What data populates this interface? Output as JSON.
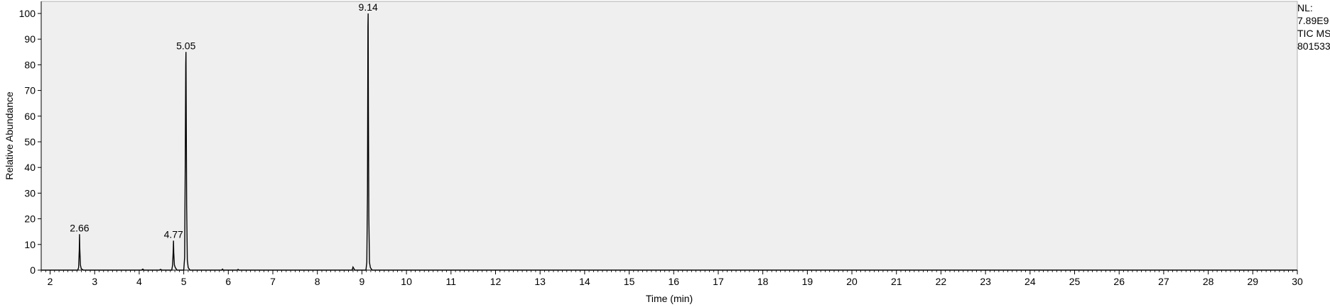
{
  "chart_data": {
    "type": "line",
    "title": "",
    "xlabel": "Time (min)",
    "ylabel": "Relative Abundance",
    "xlim": [
      1.8,
      30
    ],
    "ylim": [
      0,
      100
    ],
    "x_ticks": [
      2,
      3,
      4,
      5,
      6,
      7,
      8,
      9,
      10,
      11,
      12,
      13,
      14,
      15,
      16,
      17,
      18,
      19,
      20,
      21,
      22,
      23,
      24,
      25,
      26,
      27,
      28,
      29,
      30
    ],
    "y_ticks": [
      0,
      10,
      20,
      30,
      40,
      50,
      60,
      70,
      80,
      90,
      100
    ],
    "grid": false,
    "series": [
      {
        "x": [
          1.8,
          2.62,
          2.64,
          2.655,
          2.66,
          2.665,
          2.68,
          2.7,
          2.75,
          4.05,
          4.08,
          4.11,
          4.45,
          4.48,
          4.51,
          4.73,
          4.75,
          4.765,
          4.77,
          4.775,
          4.79,
          4.81,
          4.85,
          5.0,
          5.02,
          5.035,
          5.045,
          5.05,
          5.055,
          5.065,
          5.08,
          5.1,
          5.14,
          5.85,
          5.87,
          5.89,
          6.2,
          6.22,
          6.24,
          8.78,
          8.8,
          8.82,
          8.84,
          9.09,
          9.11,
          9.125,
          9.135,
          9.14,
          9.145,
          9.155,
          9.17,
          9.19,
          9.23,
          30.0
        ],
        "y": [
          0,
          0,
          1,
          8,
          14,
          9,
          2,
          0.5,
          0,
          0,
          0.4,
          0,
          0,
          0.3,
          0,
          0,
          2,
          8,
          11.5,
          7,
          2,
          1,
          0,
          0,
          5,
          45,
          80,
          85,
          65,
          25,
          4,
          1,
          0,
          0,
          0.4,
          0,
          0,
          0.3,
          0,
          0,
          1.2,
          0.6,
          0,
          0,
          3,
          30,
          95,
          100,
          64,
          21,
          3,
          1,
          0,
          0
        ]
      }
    ],
    "peak_labels": [
      {
        "x": 2.66,
        "y": 14,
        "label": "2.66"
      },
      {
        "x": 4.77,
        "y": 11.5,
        "label": "4.77"
      },
      {
        "x": 5.05,
        "y": 85,
        "label": "5.05"
      },
      {
        "x": 9.14,
        "y": 100,
        "label": "9.14"
      }
    ]
  },
  "side_panel": [
    "NL:",
    "7.89E9",
    "TIC  MS",
    "801533"
  ],
  "colors": {
    "plot_background": "#efefef",
    "trace": "#000000",
    "axis": "#000000"
  }
}
